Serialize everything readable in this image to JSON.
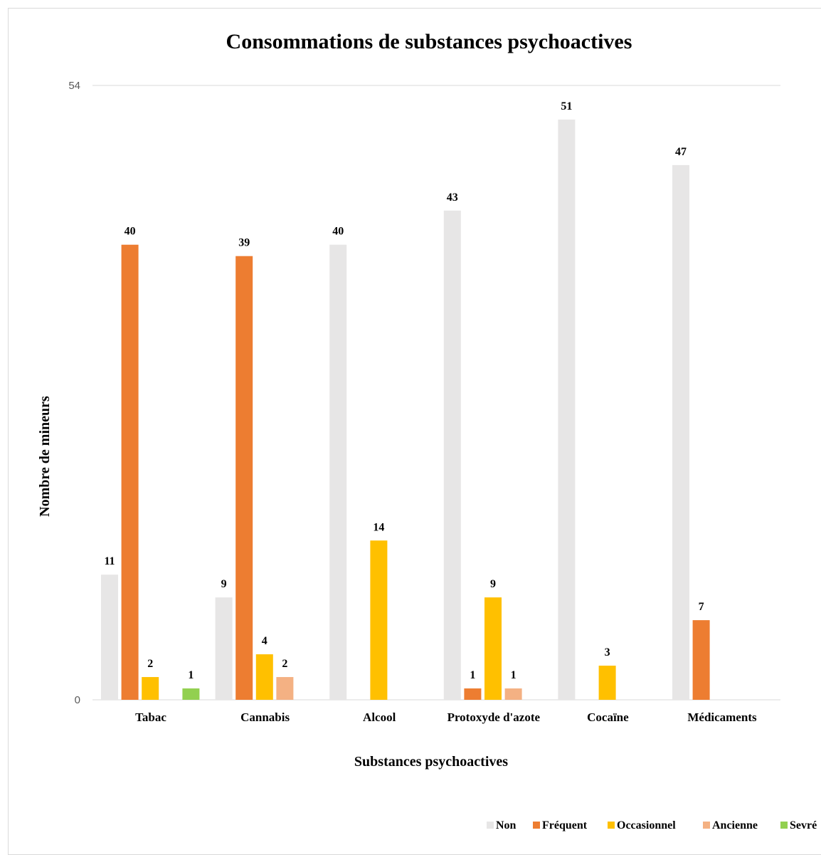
{
  "chart_data": {
    "type": "bar",
    "title": "Consommations de substances psychoactives",
    "xlabel": "Substances psychoactives",
    "ylabel": "Nombre de mineurs",
    "ylim": [
      0,
      54
    ],
    "yticks": [
      "0",
      "54"
    ],
    "grid": true,
    "legend_position": "bottom-right",
    "categories": [
      "Tabac",
      "Cannabis",
      "Alcool",
      "Protoxyde d'azote",
      "Cocaïne",
      "Médicaments"
    ],
    "series": [
      {
        "name": "Non",
        "color": "#E7E6E6",
        "values": [
          11,
          9,
          40,
          43,
          51,
          47
        ]
      },
      {
        "name": "Fréquent",
        "color": "#ED7D31",
        "values": [
          40,
          39,
          null,
          1,
          null,
          7
        ]
      },
      {
        "name": "Occasionnel",
        "color": "#FFC000",
        "values": [
          2,
          4,
          14,
          9,
          3,
          null
        ]
      },
      {
        "name": "Ancienne",
        "color": "#F4B183",
        "values": [
          null,
          2,
          null,
          1,
          null,
          null
        ]
      },
      {
        "name": "Sevré",
        "color": "#92D050",
        "values": [
          1,
          null,
          null,
          null,
          null,
          null
        ]
      }
    ]
  }
}
